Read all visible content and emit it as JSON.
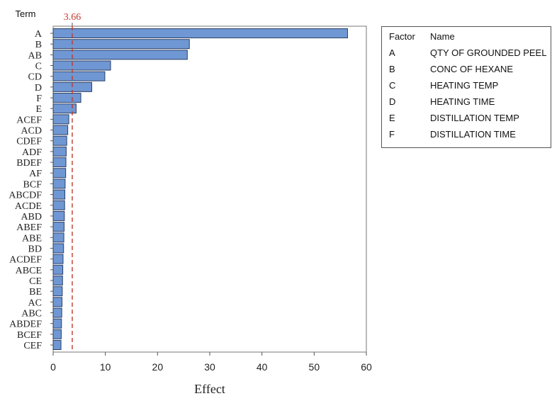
{
  "chart_data": {
    "type": "bar",
    "orientation": "horizontal",
    "ylabel": "Term",
    "xlabel": "Effect",
    "xlim": [
      0,
      60
    ],
    "xticks": [
      0,
      10,
      20,
      30,
      40,
      50,
      60
    ],
    "reference_line": {
      "value": 3.66,
      "label": "3.66",
      "color": "#c0392b",
      "style": "dashed"
    },
    "bar_color": "#6f97d3",
    "categories": [
      "A",
      "B",
      "AB",
      "C",
      "CD",
      "D",
      "F",
      "E",
      "ACEF",
      "ACD",
      "CDEF",
      "ADF",
      "BDEF",
      "AF",
      "BCF",
      "ABCDF",
      "ACDE",
      "ABD",
      "ABEF",
      "ABE",
      "BD",
      "ACDEF",
      "ABCE",
      "CE",
      "BE",
      "AC",
      "ABC",
      "ABDEF",
      "BCEF",
      "CEF"
    ],
    "values": [
      56.4,
      26.1,
      25.7,
      11.0,
      9.9,
      7.4,
      5.3,
      4.4,
      3.0,
      2.8,
      2.6,
      2.5,
      2.45,
      2.4,
      2.3,
      2.25,
      2.2,
      2.15,
      2.1,
      2.05,
      2.0,
      1.9,
      1.85,
      1.8,
      1.75,
      1.7,
      1.65,
      1.6,
      1.55,
      1.5
    ]
  },
  "legend": {
    "header_factor": "Factor",
    "header_name": "Name",
    "rows": [
      {
        "factor": "A",
        "name": "QTY OF GROUNDED PEEL"
      },
      {
        "factor": "B",
        "name": "CONC OF HEXANE"
      },
      {
        "factor": "C",
        "name": "HEATING TEMP"
      },
      {
        "factor": "D",
        "name": "HEATING TIME"
      },
      {
        "factor": "E",
        "name": "DISTILLATION TEMP"
      },
      {
        "factor": "F",
        "name": "DISTILLATION TIME"
      }
    ]
  }
}
